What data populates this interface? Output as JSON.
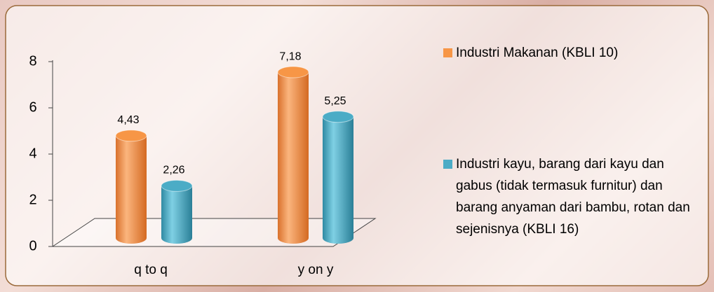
{
  "chart_data": {
    "type": "bar3d",
    "categories": [
      "q to q",
      "y on y"
    ],
    "series": [
      {
        "name": "Industri Makanan (KBLI 10)",
        "color": "#f79646",
        "values": [
          4.43,
          7.18
        ],
        "value_labels": [
          "4,43",
          "7,18"
        ]
      },
      {
        "name": "Industri kayu, barang dari kayu dan gabus (tidak termasuk furnitur) dan barang anyaman dari bambu, rotan dan sejenisnya (KBLI 16)",
        "color": "#4bacc6",
        "values": [
          2.26,
          5.25
        ],
        "value_labels": [
          "2,26",
          "5,25"
        ]
      }
    ],
    "ylim": [
      0,
      8
    ],
    "yticks": [
      0,
      2,
      4,
      6,
      8
    ],
    "grid": false,
    "legend": "right"
  }
}
